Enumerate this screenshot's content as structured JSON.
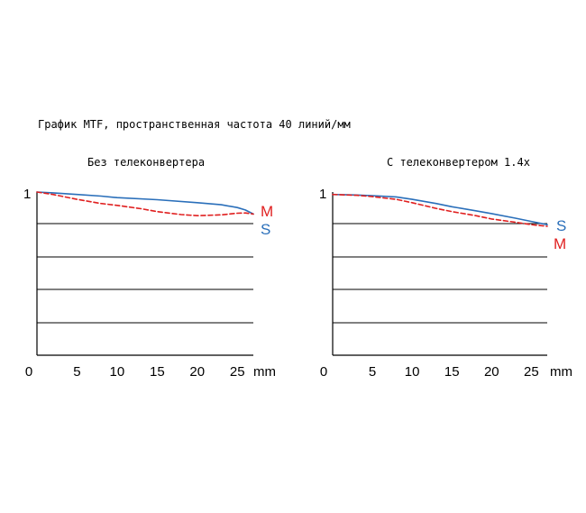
{
  "title": "График MTF, пространственная частота 40 линий/мм",
  "colors": {
    "S": "#2a6fba",
    "M": "#e02020",
    "axis": "#000000"
  },
  "chart_data": [
    {
      "type": "line",
      "title": "Без телеконвертера",
      "x_unit": "mm",
      "x_ticks": [
        "0",
        "5",
        "10",
        "15",
        "20",
        "25"
      ],
      "y_tick_label": "1",
      "xlim": [
        0,
        27
      ],
      "ylim": [
        0,
        1
      ],
      "grid": true,
      "series": [
        {
          "name": "S",
          "style": "solid",
          "x": [
            0,
            2,
            5,
            8,
            10,
            15,
            20,
            23,
            25,
            26,
            27
          ],
          "y": [
            1.0,
            0.995,
            0.985,
            0.975,
            0.966,
            0.953,
            0.935,
            0.922,
            0.905,
            0.89,
            0.865
          ]
        },
        {
          "name": "M",
          "style": "dashed",
          "x": [
            0,
            2,
            5,
            8,
            10,
            13,
            15,
            18,
            20,
            23,
            25,
            26,
            27
          ],
          "y": [
            1.0,
            0.985,
            0.955,
            0.93,
            0.918,
            0.898,
            0.88,
            0.862,
            0.855,
            0.86,
            0.87,
            0.872,
            0.865
          ]
        }
      ],
      "legend": [
        {
          "text": "M",
          "series": "M"
        },
        {
          "text": "S",
          "series": "S"
        }
      ]
    },
    {
      "type": "line",
      "title": "С телеконвертером 1.4x",
      "x_unit": "mm",
      "x_ticks": [
        "0",
        "5",
        "10",
        "15",
        "20",
        "25"
      ],
      "y_tick_label": "1",
      "xlim": [
        0,
        27
      ],
      "ylim": [
        0,
        1
      ],
      "grid": true,
      "series": [
        {
          "name": "S",
          "style": "solid",
          "x": [
            0,
            3,
            5,
            8,
            10,
            13,
            15,
            18,
            20,
            23,
            25,
            27
          ],
          "y": [
            0.985,
            0.982,
            0.978,
            0.97,
            0.955,
            0.93,
            0.91,
            0.885,
            0.868,
            0.84,
            0.82,
            0.8
          ]
        },
        {
          "name": "M",
          "style": "dashed",
          "x": [
            0,
            3,
            5,
            8,
            10,
            13,
            15,
            18,
            20,
            23,
            25,
            27
          ],
          "y": [
            0.985,
            0.98,
            0.972,
            0.955,
            0.935,
            0.9,
            0.88,
            0.855,
            0.835,
            0.815,
            0.8,
            0.79
          ]
        }
      ],
      "legend": [
        {
          "text": "S",
          "series": "S"
        },
        {
          "text": "M",
          "series": "M"
        }
      ]
    }
  ]
}
